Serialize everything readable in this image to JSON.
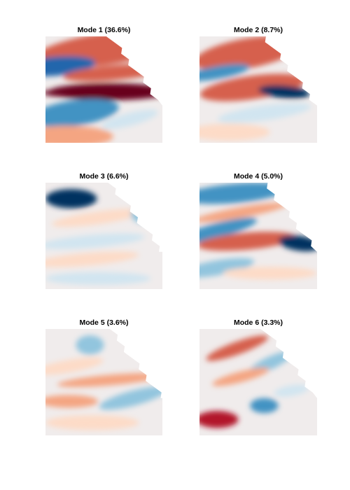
{
  "colors": {
    "background": "#ffffff",
    "land": "#ffffff",
    "colormap": [
      "#053061",
      "#2166ac",
      "#4393c3",
      "#92c5de",
      "#d1e5f0",
      "#f0ecec",
      "#fddbc7",
      "#f4a582",
      "#d6604d",
      "#b2182b",
      "#67001f"
    ]
  },
  "chart_data": [
    {
      "type": "heatmap",
      "title": "Mode 1 (36.6%)",
      "variance_explained_percent": 36.6,
      "colormap": "blue-white-red diverging",
      "pattern": "strong positive equatorial band, positive along northern coast, negative lobes in north-west and south-west"
    },
    {
      "type": "heatmap",
      "title": "Mode 2 (8.7%)",
      "variance_explained_percent": 8.7,
      "colormap": "blue-white-red diverging",
      "pattern": "positive across north, strong negative tongue in east near equator"
    },
    {
      "type": "heatmap",
      "title": "Mode 3 (6.6%)",
      "variance_explained_percent": 6.6,
      "colormap": "blue-white-red diverging",
      "pattern": "strong negative center in north-west, weak mixed elsewhere"
    },
    {
      "type": "heatmap",
      "title": "Mode 4 (5.0%)",
      "variance_explained_percent": 5.0,
      "colormap": "blue-white-red diverging",
      "pattern": "negative in north, positive band through west-center, strong negative in east"
    },
    {
      "type": "heatmap",
      "title": "Mode 5 (3.6%)",
      "variance_explained_percent": 3.6,
      "colormap": "blue-white-red diverging",
      "pattern": "weak alternating bands, negative in south-east"
    },
    {
      "type": "heatmap",
      "title": "Mode 6 (3.3%)",
      "variance_explained_percent": 3.3,
      "colormap": "blue-white-red diverging",
      "pattern": "wave-like alternating lobes, positive in south-west"
    }
  ]
}
